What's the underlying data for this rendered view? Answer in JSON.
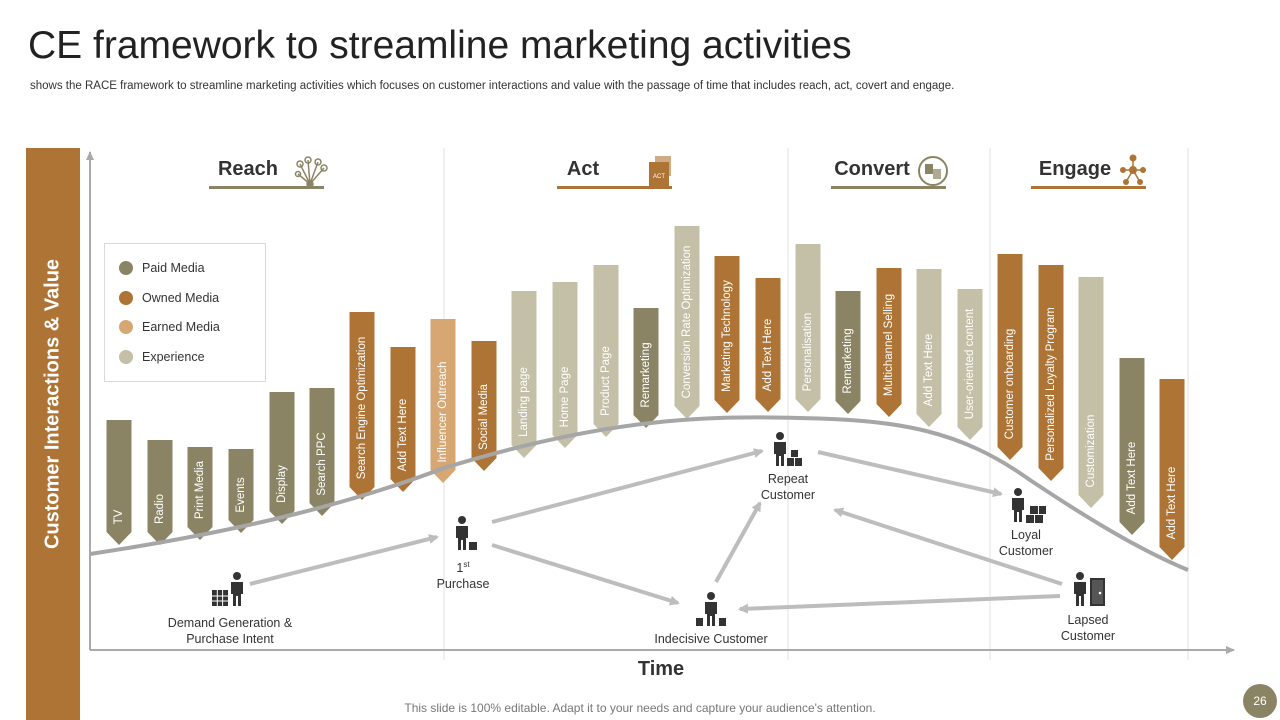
{
  "header": {
    "title": "CE framework to streamline marketing activities",
    "subtitle": "shows the RACE framework to streamline marketing activities which focuses on customer interactions and value with the passage of time that includes reach, act, covert and engage."
  },
  "y_axis_label": "Customer Interactions & Value",
  "x_axis_label": "Time",
  "colors": {
    "paid": "#8b8464",
    "owned": "#ae7435",
    "earned": "#d6a773",
    "experience": "#c4bfa7",
    "accent": "#ae7435"
  },
  "phases": [
    {
      "name": "Reach",
      "icon": "network-icon",
      "line_color": "#8b8464"
    },
    {
      "name": "Act",
      "icon": "act-document-icon",
      "line_color": "#ae7435"
    },
    {
      "name": "Convert",
      "icon": "convert-icon",
      "line_color": "#8b8464"
    },
    {
      "name": "Engage",
      "icon": "people-network-icon",
      "line_color": "#ae7435"
    }
  ],
  "legend": [
    {
      "label": "Paid Media",
      "color": "#8b8464"
    },
    {
      "label": "Owned Media",
      "color": "#ae7435"
    },
    {
      "label": "Earned Media",
      "color": "#d6a773"
    },
    {
      "label": "Experience",
      "color": "#c4bfa7"
    }
  ],
  "bars": [
    {
      "label": "TV",
      "type": "paid"
    },
    {
      "label": "Radio",
      "type": "paid"
    },
    {
      "label": "Print Media",
      "type": "paid"
    },
    {
      "label": "Events",
      "type": "paid"
    },
    {
      "label": "Display",
      "type": "paid"
    },
    {
      "label": "Search PPC",
      "type": "paid"
    },
    {
      "label": "Search Engine Optimization",
      "type": "owned"
    },
    {
      "label": "Add Text Here",
      "type": "owned"
    },
    {
      "label": "Influencer Outreach",
      "type": "earned"
    },
    {
      "label": "Social Media",
      "type": "owned"
    },
    {
      "label": "Landing page",
      "type": "experience"
    },
    {
      "label": "Home Page",
      "type": "experience"
    },
    {
      "label": "Product Page",
      "type": "experience"
    },
    {
      "label": "Remarketing",
      "type": "paid"
    },
    {
      "label": "Conversion Rate Optimization",
      "type": "experience"
    },
    {
      "label": "Marketing Technology",
      "type": "owned"
    },
    {
      "label": "Add Text Here",
      "type": "owned"
    },
    {
      "label": "Personalisation",
      "type": "experience"
    },
    {
      "label": "Remarketing",
      "type": "paid"
    },
    {
      "label": "Multichannel Selling",
      "type": "owned"
    },
    {
      "label": "Add Text Here",
      "type": "experience"
    },
    {
      "label": "User-oriented content",
      "type": "experience"
    },
    {
      "label": "Customer onboarding",
      "type": "owned"
    },
    {
      "label": "Personalized Loyalty Program",
      "type": "owned"
    },
    {
      "label": "Customization",
      "type": "experience"
    },
    {
      "label": "Add Text Here",
      "type": "paid"
    },
    {
      "label": "Add Text Here",
      "type": "owned"
    }
  ],
  "nodes": {
    "demand": {
      "line1": "Demand Generation &",
      "line2": "Purchase Intent"
    },
    "first": {
      "line1": "1",
      "sup": "st",
      "line2": "Purchase"
    },
    "indecisive": {
      "line1": "Indecisive  Customer"
    },
    "repeat": {
      "line1": "Repeat",
      "line2": "Customer"
    },
    "loyal": {
      "line1": "Loyal",
      "line2": "Customer"
    },
    "lapsed": {
      "line1": "Lapsed",
      "line2": "Customer"
    }
  },
  "footer": "This slide is 100% editable. Adapt it to your needs and capture your audience's attention.",
  "page_number": "26"
}
